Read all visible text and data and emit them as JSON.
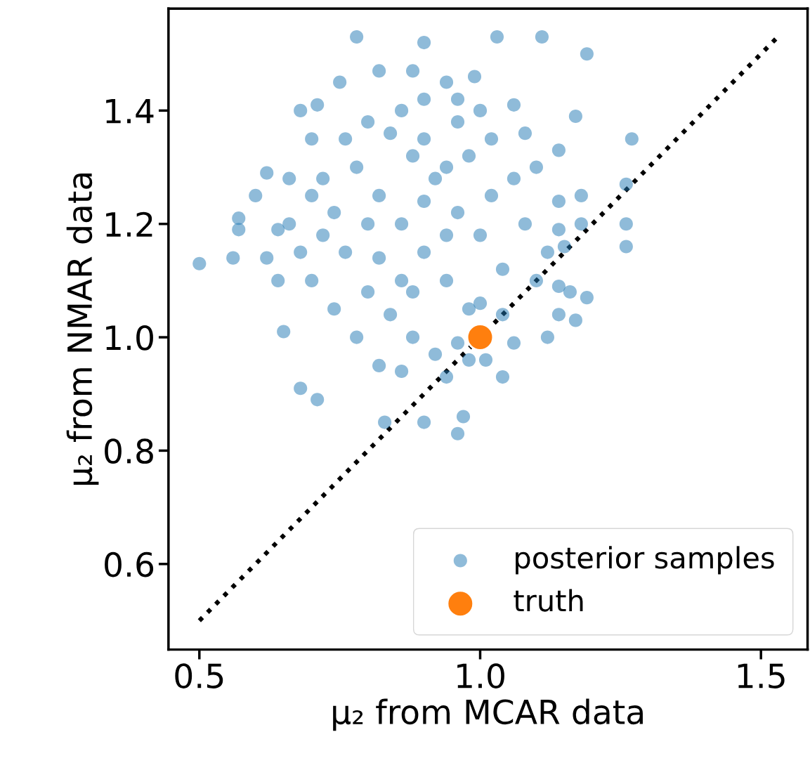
{
  "chart_data": {
    "type": "scatter",
    "xlabel": "μ₂ from MCAR data",
    "ylabel": "μ₂ from NMAR data",
    "xlim": [
      0.445,
      1.583
    ],
    "ylim": [
      0.449,
      1.58
    ],
    "xticks": [
      0.5,
      {
        "value": 1,
        "label": "1.0"
      },
      1.5
    ],
    "yticks": [
      0.6,
      0.8,
      {
        "value": 1,
        "label": "1.0"
      },
      1.2,
      1.4
    ],
    "grid": false,
    "legend": "bottom right",
    "series": [
      {
        "type": "line",
        "color": "#000000",
        "line_style": "dotted",
        "marker": "none",
        "x": [
          0.5,
          1.53
        ],
        "values": [
          0.5,
          1.53
        ]
      },
      {
        "name": "posterior samples",
        "color": "#1f77b4",
        "marker": "circle",
        "x": [
          0.5,
          0.78,
          0.9,
          1.03,
          1.11,
          1.19,
          1.27,
          1.26,
          1.26,
          1.26,
          1.19,
          1.17,
          0.83,
          0.9,
          0.97,
          0.96,
          0.71,
          0.68,
          0.65,
          0.57,
          0.57,
          0.56,
          0.6,
          0.62,
          0.62,
          0.64,
          0.68,
          0.71,
          0.7,
          0.75,
          0.82,
          0.88,
          0.94,
          0.99,
          1.06,
          1.17,
          1.18,
          1.14,
          1.15,
          1.14,
          1.14,
          1.04,
          1.01,
          0.78,
          0.82,
          0.86,
          0.9,
          0.94,
          0.98,
          0.88,
          0.92,
          0.96,
          1.0,
          1.04,
          1.08,
          1.06,
          1.02,
          0.96,
          0.84,
          0.8,
          0.76,
          0.74,
          0.72,
          0.7,
          0.74,
          0.8,
          0.84,
          0.88,
          0.92,
          0.96,
          1.0,
          1.04,
          1.1,
          1.12,
          1.14,
          1.1,
          1.14,
          1.08,
          0.9,
          0.86,
          0.82,
          0.86,
          0.9,
          0.94,
          0.98,
          1.02,
          0.94,
          0.88,
          0.78,
          0.82,
          0.86,
          0.94,
          0.98,
          0.66,
          0.68,
          0.7,
          0.66,
          0.64,
          0.72,
          1.16,
          1.18,
          1.12,
          1.06,
          0.9,
          0.8,
          0.76,
          0.96,
          1.0
        ],
        "values": [
          1.13,
          1.53,
          1.52,
          1.53,
          1.53,
          1.5,
          1.35,
          1.27,
          1.2,
          1.16,
          1.07,
          1.03,
          0.85,
          0.85,
          0.86,
          0.83,
          0.89,
          0.91,
          1.01,
          1.21,
          1.19,
          1.14,
          1.25,
          1.29,
          1.14,
          1.19,
          1.4,
          1.41,
          1.35,
          1.45,
          1.47,
          1.47,
          1.45,
          1.46,
          1.41,
          1.39,
          1.25,
          1.19,
          1.16,
          1.09,
          1.04,
          0.93,
          0.96,
          1.3,
          1.25,
          1.2,
          1.15,
          1.1,
          1.05,
          1.32,
          1.28,
          1.22,
          1.18,
          1.12,
          1.2,
          1.28,
          1.35,
          1.38,
          1.36,
          1.2,
          1.15,
          1.22,
          1.28,
          1.1,
          1.05,
          1.08,
          1.04,
          1.0,
          0.97,
          0.99,
          1.06,
          1.04,
          1.1,
          1.15,
          1.24,
          1.3,
          1.33,
          1.36,
          1.42,
          1.4,
          1.14,
          1.1,
          1.24,
          1.3,
          1.32,
          1.25,
          1.18,
          1.08,
          1.0,
          0.95,
          0.94,
          0.93,
          0.96,
          1.2,
          1.15,
          1.25,
          1.28,
          1.1,
          1.18,
          1.08,
          1.2,
          1.0,
          0.99,
          1.35,
          1.38,
          1.35,
          1.42,
          1.4
        ]
      },
      {
        "name": "truth",
        "color": "#ff7f0e",
        "marker": "circle",
        "x": [
          1.0
        ],
        "values": [
          1.0
        ]
      }
    ]
  }
}
